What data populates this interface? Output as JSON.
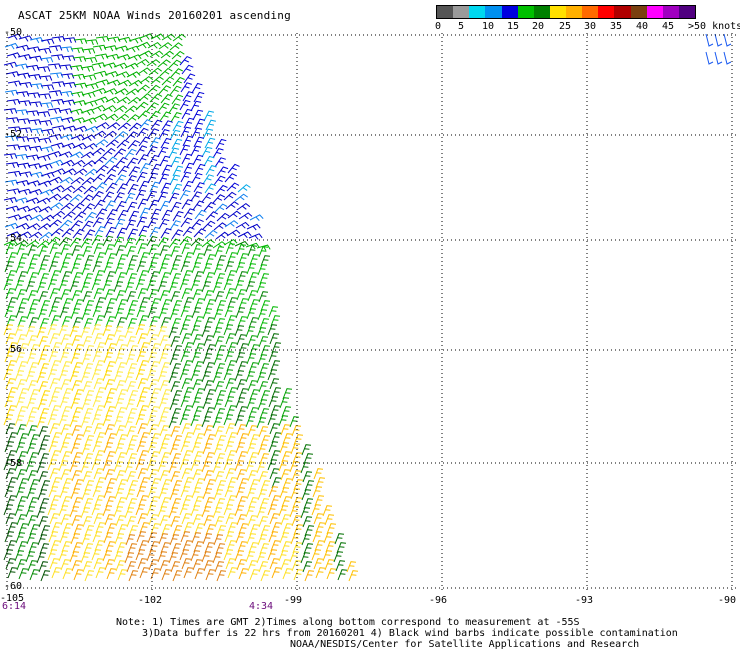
{
  "title": "ASCAT 25KM NOAA Winds 20160201 ascending",
  "scale": {
    "labels": [
      "0",
      "5",
      "10",
      "15",
      "20",
      "25",
      "30",
      "35",
      "40",
      "45",
      ">50 knots"
    ],
    "colors": [
      "#555555",
      "#9a9a9a",
      "#00d8f0",
      "#0090f0",
      "#0000e0",
      "#00c000",
      "#008000",
      "#ffe000",
      "#ffb000",
      "#ff6a00",
      "#ff0000",
      "#b00000",
      "#7a4010",
      "#ff00ff",
      "#a000c0",
      "#500080"
    ]
  },
  "map": {
    "lat_labels": [
      "-50",
      "-52",
      "-54",
      "-56",
      "-58",
      "-60"
    ],
    "lon_labels": [
      "-105",
      "-102",
      "-99",
      "-96",
      "-93",
      "-90"
    ]
  },
  "time_labels": [
    "6:14",
    "4:34"
  ],
  "notes": {
    "line1": "Note: 1) Times are GMT 2)Times along bottom correspond to measurement at -55S",
    "line2": "3)Data buffer is 22 hrs from 20160201 4) Black wind barbs indicate possible contamination",
    "line3": "NOAA/NESDIS/Center for Satellite Applications and Research"
  }
}
